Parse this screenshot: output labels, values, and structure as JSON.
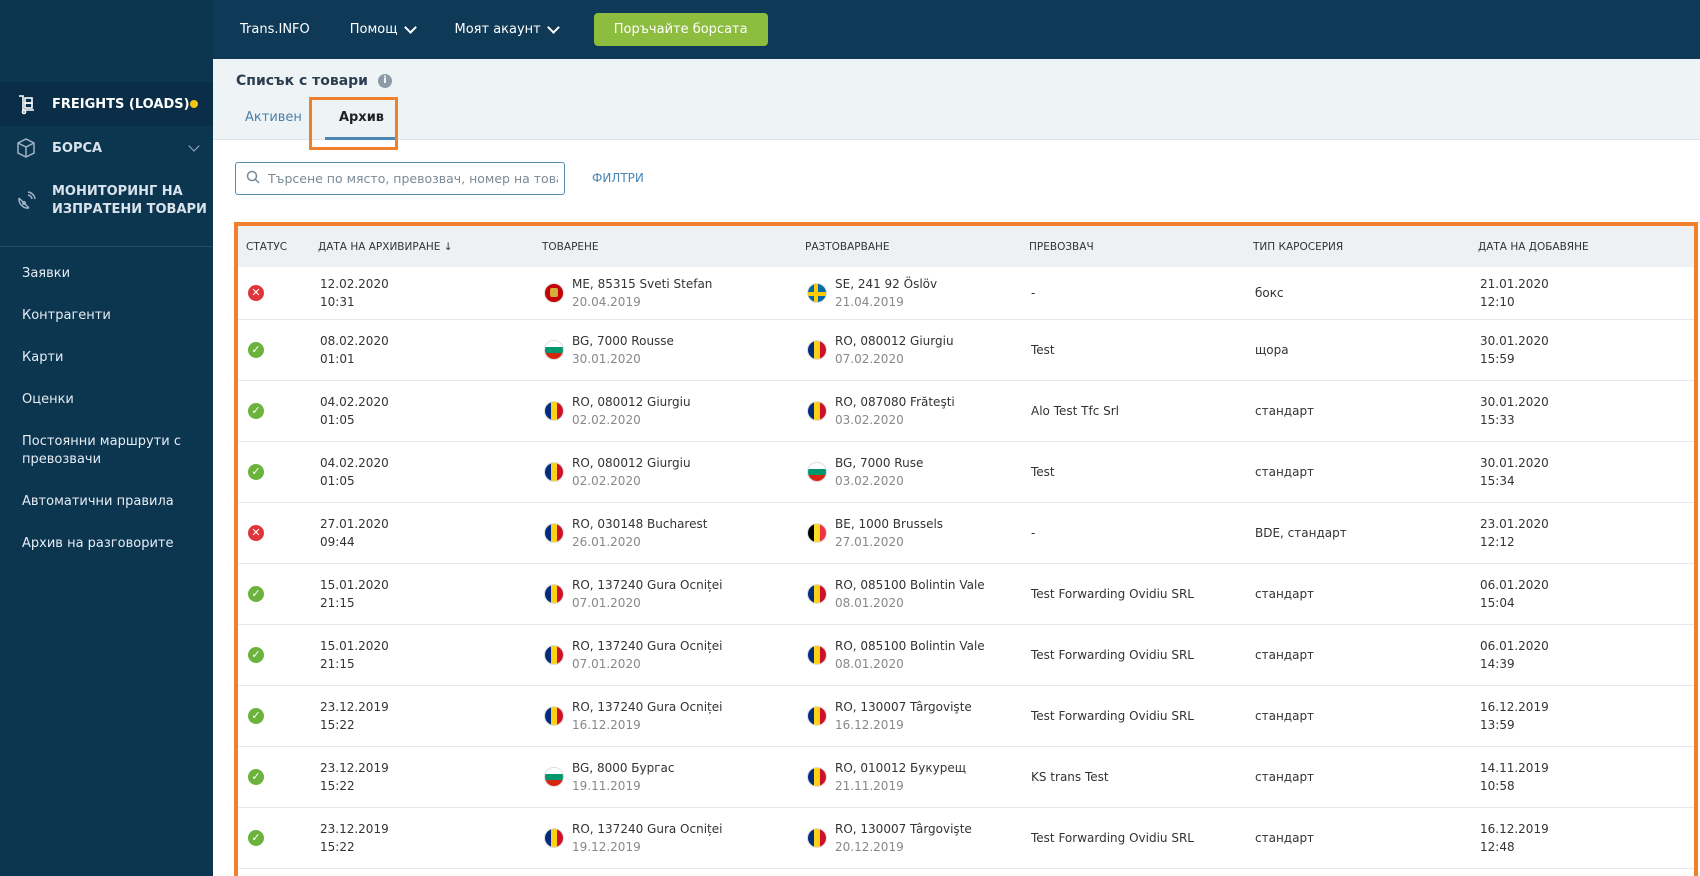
{
  "topbar": {
    "brand": "Trans.INFO",
    "help": "Помощ",
    "account": "Моят акаунт",
    "cta": "Поръчайте борсата"
  },
  "sidebar": {
    "main": [
      {
        "label": "FREIGHTS (LOADS)",
        "icon": "freight-icon"
      },
      {
        "label": "БОРСА",
        "icon": "box-icon"
      },
      {
        "label": "МОНИТОРИНГ НА ИЗПРАТЕНИ ТОВАРИ",
        "icon": "satellite-icon"
      }
    ],
    "sub": [
      "Заявки",
      "Контрагенти",
      "Карти",
      "Оценки",
      "Постоянни маршрути с превозвачи",
      "Автоматични правила",
      "Архив на разговорите"
    ]
  },
  "page": {
    "title": "Списък с товари",
    "tabs": [
      "Активен",
      "Архив"
    ]
  },
  "search": {
    "placeholder": "Търсене по място, превозвач, номер на товар...",
    "filters": "ФИЛТРИ"
  },
  "colors": {
    "highlight": "#f0802c",
    "ok": "#6cb33e",
    "error": "#e0353b",
    "accent": "#8cbd3e"
  },
  "table": {
    "headers": [
      "СТАТУС",
      "ДАТА НА АРХИВИРАНЕ ↓",
      "ТОВАРЕНЕ",
      "РАЗТОВАРВАНЕ",
      "ПРЕВОЗВАЧ",
      "ТИП КАРОСЕРИЯ",
      "ДАТА НА ДОБАВЯНЕ"
    ],
    "rows": [
      {
        "status": "error",
        "arch_date": "12.02.2020",
        "arch_time": "10:31",
        "load_country": "ME",
        "load_place": "ME, 85315 Sveti Stefan",
        "load_date": "20.04.2019",
        "unload_country": "SE",
        "unload_place": "SE, 241 92 Öslöv",
        "unload_date": "21.04.2019",
        "carrier": "-",
        "body": "бокс",
        "added_date": "21.01.2020",
        "added_time": "12:10"
      },
      {
        "status": "ok",
        "arch_date": "08.02.2020",
        "arch_time": "01:01",
        "load_country": "BG",
        "load_place": "BG, 7000 Rousse",
        "load_date": "30.01.2020",
        "unload_country": "RO",
        "unload_place": "RO, 080012 Giurgiu",
        "unload_date": "07.02.2020",
        "carrier": "Test",
        "body": "щора",
        "added_date": "30.01.2020",
        "added_time": "15:59"
      },
      {
        "status": "ok",
        "arch_date": "04.02.2020",
        "arch_time": "01:05",
        "load_country": "RO",
        "load_place": "RO, 080012 Giurgiu",
        "load_date": "02.02.2020",
        "unload_country": "RO",
        "unload_place": "RO, 087080 Frăteşti",
        "unload_date": "03.02.2020",
        "carrier": "Alo Test Tfc Srl",
        "body": "стандарт",
        "added_date": "30.01.2020",
        "added_time": "15:33"
      },
      {
        "status": "ok",
        "arch_date": "04.02.2020",
        "arch_time": "01:05",
        "load_country": "RO",
        "load_place": "RO, 080012 Giurgiu",
        "load_date": "02.02.2020",
        "unload_country": "BG",
        "unload_place": "BG, 7000 Ruse",
        "unload_date": "03.02.2020",
        "carrier": "Test",
        "body": "стандарт",
        "added_date": "30.01.2020",
        "added_time": "15:34"
      },
      {
        "status": "error",
        "arch_date": "27.01.2020",
        "arch_time": "09:44",
        "load_country": "RO",
        "load_place": "RO, 030148 Bucharest",
        "load_date": "26.01.2020",
        "unload_country": "BE",
        "unload_place": "BE, 1000 Brussels",
        "unload_date": "27.01.2020",
        "carrier": "-",
        "body": "BDE, стандарт",
        "added_date": "23.01.2020",
        "added_time": "12:12"
      },
      {
        "status": "ok",
        "arch_date": "15.01.2020",
        "arch_time": "21:15",
        "load_country": "RO",
        "load_place": "RO, 137240 Gura Ocniței",
        "load_date": "07.01.2020",
        "unload_country": "RO",
        "unload_place": "RO, 085100 Bolintin Vale",
        "unload_date": "08.01.2020",
        "carrier": "Test Forwarding Ovidiu SRL",
        "body": "стандарт",
        "added_date": "06.01.2020",
        "added_time": "15:04"
      },
      {
        "status": "ok",
        "arch_date": "15.01.2020",
        "arch_time": "21:15",
        "load_country": "RO",
        "load_place": "RO, 137240 Gura Ocniței",
        "load_date": "07.01.2020",
        "unload_country": "RO",
        "unload_place": "RO, 085100 Bolintin Vale",
        "unload_date": "08.01.2020",
        "carrier": "Test Forwarding Ovidiu SRL",
        "body": "стандарт",
        "added_date": "06.01.2020",
        "added_time": "14:39"
      },
      {
        "status": "ok",
        "arch_date": "23.12.2019",
        "arch_time": "15:22",
        "load_country": "RO",
        "load_place": "RO, 137240 Gura Ocniței",
        "load_date": "16.12.2019",
        "unload_country": "RO",
        "unload_place": "RO, 130007 Târgovişte",
        "unload_date": "16.12.2019",
        "carrier": "Test Forwarding Ovidiu SRL",
        "body": "стандарт",
        "added_date": "16.12.2019",
        "added_time": "13:59"
      },
      {
        "status": "ok",
        "arch_date": "23.12.2019",
        "arch_time": "15:22",
        "load_country": "BG",
        "load_place": "BG, 8000 Бургас",
        "load_date": "19.11.2019",
        "unload_country": "RO",
        "unload_place": "RO, 010012 Букурещ",
        "unload_date": "21.11.2019",
        "carrier": "KS trans Test",
        "body": "стандарт",
        "added_date": "14.11.2019",
        "added_time": "10:58"
      },
      {
        "status": "ok",
        "arch_date": "23.12.2019",
        "arch_time": "15:22",
        "load_country": "RO",
        "load_place": "RO, 137240 Gura Ocniței",
        "load_date": "19.12.2019",
        "unload_country": "RO",
        "unload_place": "RO, 130007 Târgovişte",
        "unload_date": "20.12.2019",
        "carrier": "Test Forwarding Ovidiu SRL",
        "body": "стандарт",
        "added_date": "16.12.2019",
        "added_time": "12:48"
      }
    ]
  }
}
